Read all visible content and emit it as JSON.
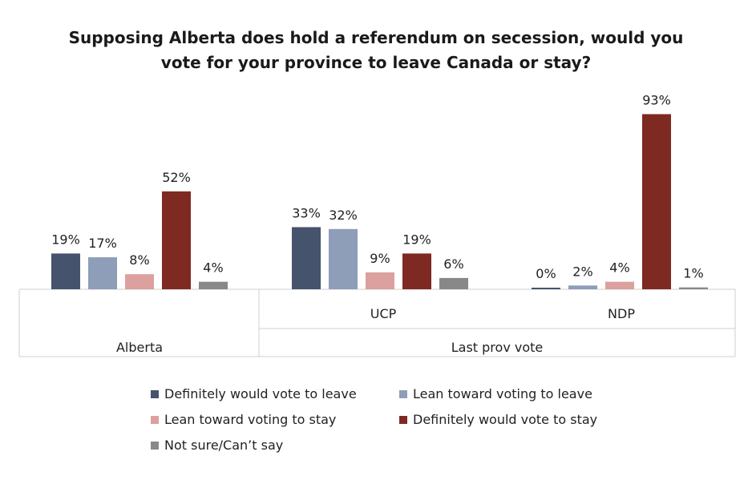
{
  "chart_data": {
    "type": "bar",
    "title": "Supposing Alberta does hold a referendum on secession, would you vote for your province to leave Canada or stay?",
    "groups": [
      {
        "label": "Alberta",
        "values": [
          19,
          17,
          8,
          52,
          4
        ],
        "value_labels": [
          "19%",
          "17%",
          "8%",
          "52%",
          "4%"
        ]
      },
      {
        "label": "UCP",
        "values": [
          33,
          32,
          9,
          19,
          6
        ],
        "value_labels": [
          "33%",
          "32%",
          "9%",
          "19%",
          "6%"
        ]
      },
      {
        "label": "NDP",
        "values": [
          0,
          2,
          4,
          93,
          1
        ],
        "value_labels": [
          "0%",
          "2%",
          "4%",
          "93%",
          "1%"
        ]
      }
    ],
    "outer_categories": [
      {
        "label": "Alberta"
      },
      {
        "label": "Last prov vote"
      }
    ],
    "series": [
      {
        "name": "Definitely would vote to leave",
        "color": "#46536d"
      },
      {
        "name": "Lean toward voting to leave",
        "color": "#8e9db8"
      },
      {
        "name": "Lean toward voting to stay",
        "color": "#dca09e"
      },
      {
        "name": "Definitely would vote to stay",
        "color": "#7e2a22"
      },
      {
        "name": "Not sure/Can’t say",
        "color": "#888888"
      }
    ],
    "ylim": [
      0,
      100
    ],
    "grid": false,
    "legend_position": "bottom"
  }
}
